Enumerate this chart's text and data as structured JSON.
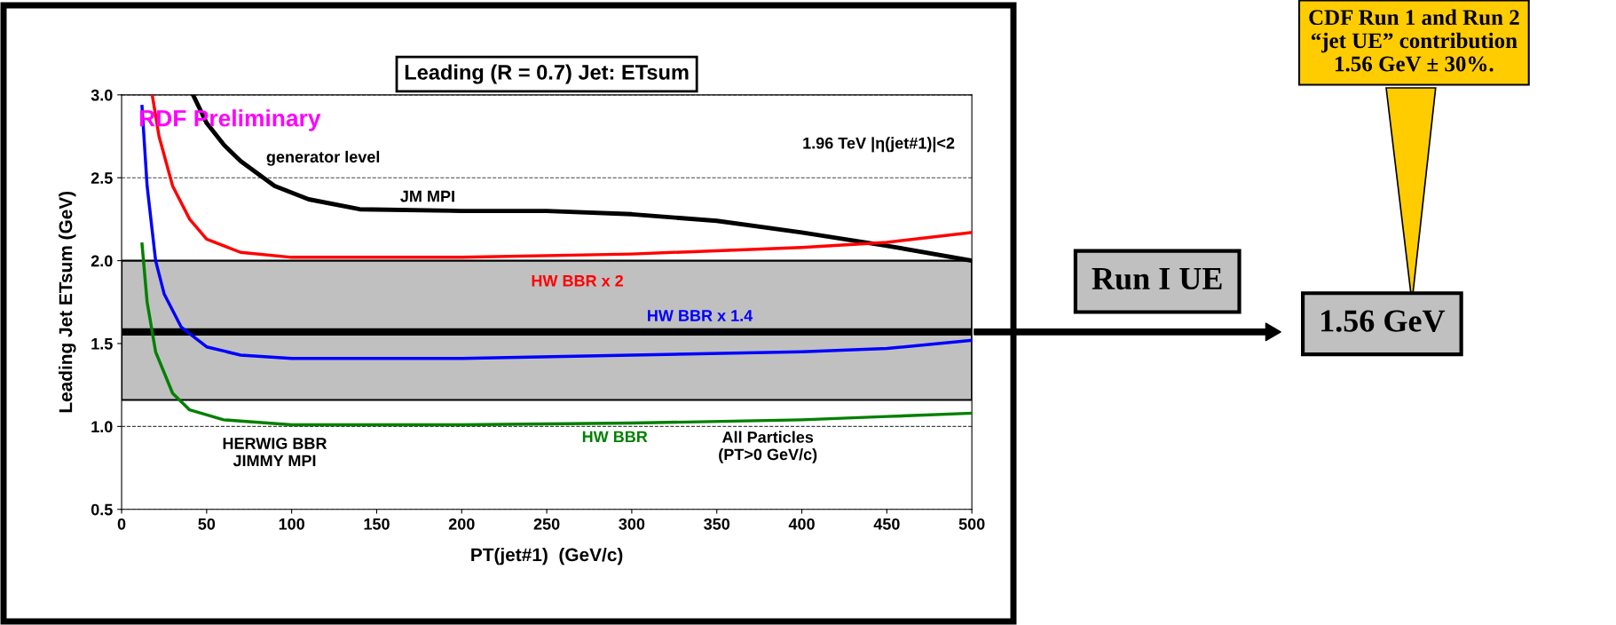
{
  "chart_data": {
    "type": "line",
    "title": "Leading (R = 0.7) Jet: ETsum",
    "xlabel": "PT(jet#1)  (GeV/c)",
    "ylabel": "Leading Jet ETsum (GeV)",
    "series": [
      {
        "name": "JM MPI",
        "color": "#000000",
        "x": [
          42,
          50,
          60,
          70,
          90,
          110,
          140,
          200,
          250,
          300,
          350,
          400,
          450,
          500
        ],
        "values": [
          3.0,
          2.83,
          2.7,
          2.6,
          2.45,
          2.37,
          2.31,
          2.3,
          2.3,
          2.28,
          2.24,
          2.17,
          2.09,
          2.0
        ]
      },
      {
        "name": "HW BBR x 2",
        "color": "#ff0000",
        "x": [
          18,
          22,
          30,
          40,
          50,
          70,
          100,
          200,
          300,
          400,
          450,
          500
        ],
        "values": [
          3.0,
          2.75,
          2.45,
          2.25,
          2.13,
          2.05,
          2.02,
          2.02,
          2.04,
          2.08,
          2.11,
          2.17
        ]
      },
      {
        "name": "HW BBR x 1.4",
        "color": "#0000ff",
        "x": [
          12,
          15,
          20,
          25,
          35,
          50,
          70,
          100,
          200,
          300,
          400,
          450,
          500
        ],
        "values": [
          2.93,
          2.45,
          2.0,
          1.8,
          1.6,
          1.48,
          1.43,
          1.41,
          1.41,
          1.43,
          1.45,
          1.47,
          1.52
        ]
      },
      {
        "name": "HW BBR",
        "color": "#008000",
        "x": [
          12,
          15,
          20,
          30,
          40,
          60,
          100,
          200,
          300,
          400,
          450,
          500
        ],
        "values": [
          2.1,
          1.75,
          1.45,
          1.2,
          1.1,
          1.04,
          1.01,
          1.01,
          1.02,
          1.04,
          1.06,
          1.08
        ]
      }
    ],
    "xlim": [
      0,
      500
    ],
    "ylim": [
      0.5,
      3.0
    ],
    "xticks": [
      0,
      50,
      100,
      150,
      200,
      250,
      300,
      350,
      400,
      450,
      500
    ],
    "yticks": [
      {
        "value": 0.5,
        "label": "0.5"
      },
      {
        "value": 1.0,
        "label": "1.0"
      },
      {
        "value": 1.5,
        "label": "1.5"
      },
      {
        "value": 2.0,
        "label": "2.0"
      },
      {
        "value": 2.5,
        "label": "2.5"
      },
      {
        "value": 3.0,
        "label": "3.0"
      }
    ],
    "grid": "y",
    "legend": false,
    "marker": "none",
    "line_style": "solid",
    "bands": [
      {
        "axis": "y",
        "from": 1.16,
        "to": 2.0,
        "color": "#c0c0c0"
      }
    ],
    "ref_lines": [
      {
        "axis": "y",
        "value": 1.57,
        "color": "#000000"
      }
    ],
    "annotations": [
      "RDF Preliminary",
      "generator level",
      "1.96 TeV |η(jet#1)|<2",
      "HERWIG BBR\nJIMMY MPI",
      "All Particles\n(PT>0 GeV/c)",
      "Run I UE",
      "1.56 GeV",
      "CDF Run 1 and Run 2\n“jet UE” contribution\n1.56 GeV ± 30%."
    ]
  }
}
